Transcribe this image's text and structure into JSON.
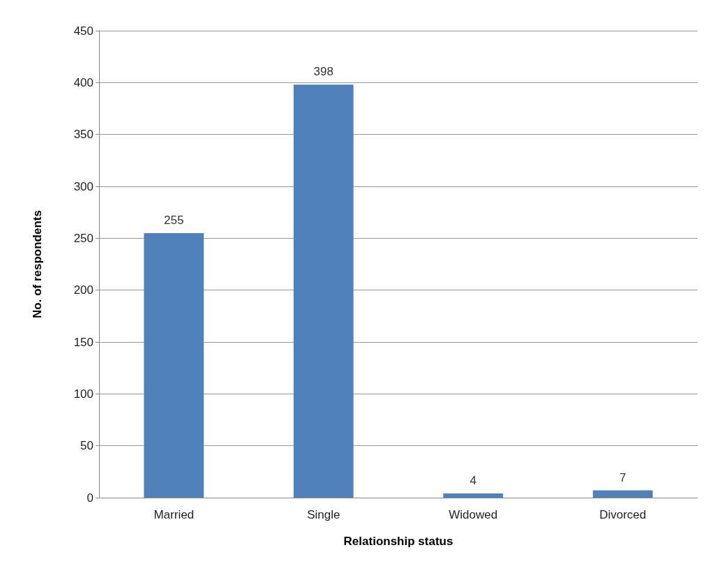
{
  "chart_data": {
    "type": "bar",
    "xlabel": "Relationship status",
    "ylabel": "No. of respondents",
    "categories": [
      "Married",
      "Single",
      "Widowed",
      "Divorced"
    ],
    "values": [
      255,
      398,
      4,
      7
    ],
    "color": "#4f81bd",
    "ylim": [
      0,
      450
    ],
    "yticks": [
      0,
      50,
      100,
      150,
      200,
      250,
      300,
      350,
      400,
      450
    ],
    "grid": "y",
    "data_labels": true
  }
}
